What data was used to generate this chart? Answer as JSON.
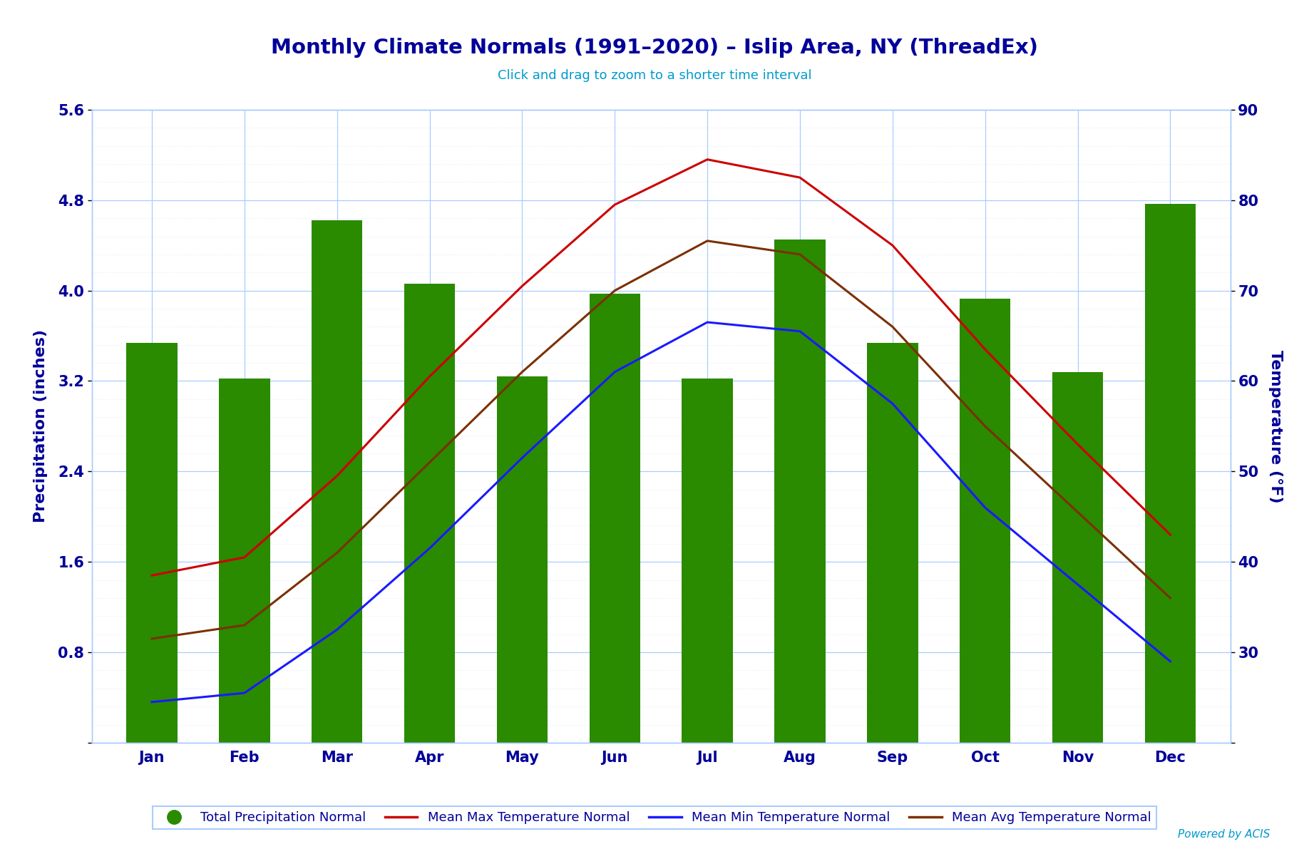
{
  "title": "Monthly Climate Normals (1991–2020) – Islip Area, NY (ThreadEx)",
  "subtitle": "Click and drag to zoom to a shorter time interval",
  "months": [
    "Jan",
    "Feb",
    "Mar",
    "Apr",
    "May",
    "Jun",
    "Jul",
    "Aug",
    "Sep",
    "Oct",
    "Nov",
    "Dec"
  ],
  "precipitation": [
    3.54,
    3.22,
    4.62,
    4.06,
    3.24,
    3.97,
    3.22,
    4.45,
    3.54,
    3.93,
    3.28,
    4.77
  ],
  "temp_max": [
    38.5,
    40.5,
    49.5,
    60.5,
    70.5,
    79.5,
    84.5,
    82.5,
    75.0,
    63.5,
    53.0,
    43.0
  ],
  "temp_min": [
    24.5,
    25.5,
    32.5,
    41.5,
    51.5,
    61.0,
    66.5,
    65.5,
    57.5,
    46.0,
    37.5,
    29.0
  ],
  "temp_avg": [
    31.5,
    33.0,
    41.0,
    51.0,
    61.0,
    70.0,
    75.5,
    74.0,
    66.0,
    55.0,
    45.5,
    36.0
  ],
  "precip_ylim": [
    0,
    5.6
  ],
  "precip_yticks": [
    0,
    0.8,
    1.6,
    2.4,
    3.2,
    4.0,
    4.8,
    5.6
  ],
  "temp_ylim": [
    20,
    90
  ],
  "temp_yticks": [
    20,
    30,
    40,
    50,
    60,
    70,
    80,
    90
  ],
  "bar_color": "#2a8a00",
  "line_max_color": "#cc0000",
  "line_min_color": "#1a1aff",
  "line_avg_color": "#7b3000",
  "background_color": "#ffffff",
  "plot_bg_color": "#ffffff",
  "title_color": "#000099",
  "subtitle_color": "#0099cc",
  "axis_label_color": "#000099",
  "tick_label_color": "#000099",
  "grid_major_color": "#aaccff",
  "grid_minor_color": "#ccddff",
  "powered_by": "Powered by ACIS",
  "legend_labels": [
    "Total Precipitation Normal",
    "Mean Max Temperature Normal",
    "Mean Min Temperature Normal",
    "Mean Avg Temperature Normal"
  ]
}
